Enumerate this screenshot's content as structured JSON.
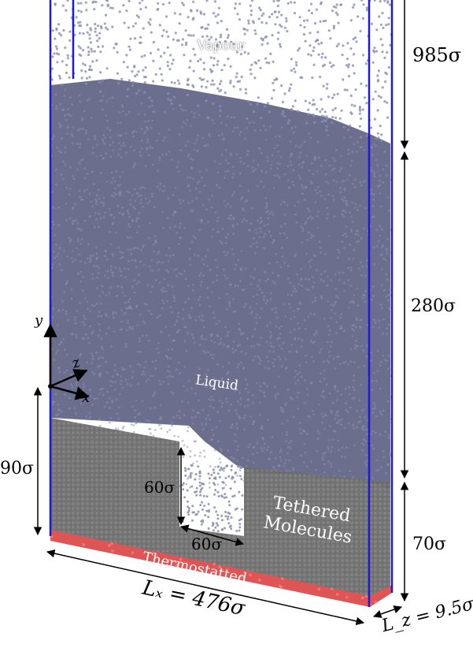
{
  "labels": {
    "vapour": "Vapour",
    "liquid": "Liquid",
    "tethered_line1": "Tethered",
    "tethered_line2": "Molecules",
    "thermostatted": "Thermostatted",
    "dim_985": "985σ",
    "dim_280": "280σ",
    "dim_70": "70σ",
    "dim_90": "90σ",
    "dim_60_v": "60σ",
    "dim_60_h": "60σ",
    "lx": "Lₓ = 476σ",
    "lz": "L_z = 9.5σ",
    "axis_y": "y",
    "axis_z": "z",
    "axis_x": "x"
  },
  "colors": {
    "box_line": "#1a1adf",
    "vapour_particle": "#8a8fb4",
    "liquid_particle": "#5f6382",
    "solid": "#6b6b6b",
    "thermostat": "#e05a5a"
  }
}
